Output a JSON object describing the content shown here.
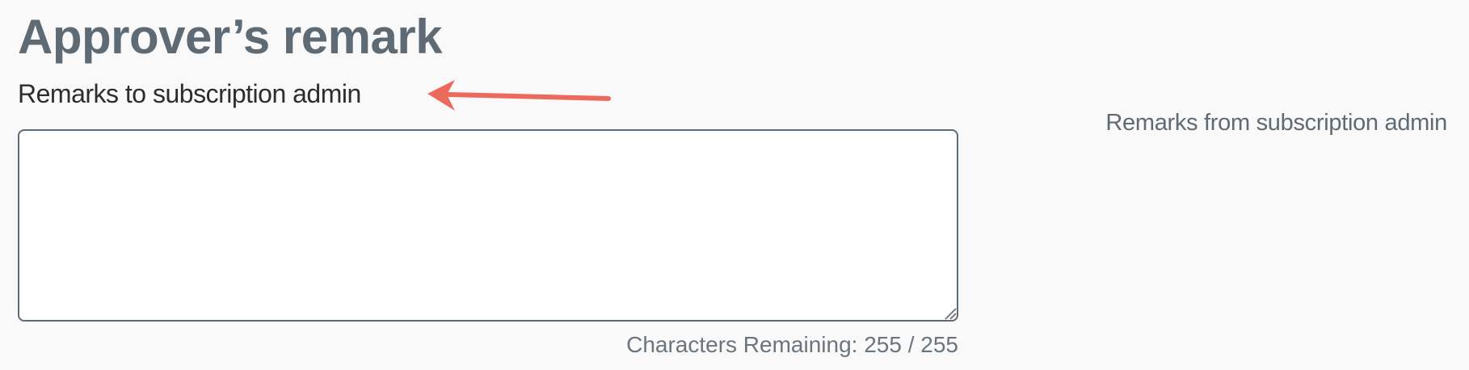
{
  "section": {
    "title": "Approver’s remark"
  },
  "remarks_to_admin": {
    "label": "Remarks to subscription admin",
    "value": "",
    "counter": "Characters Remaining: 255 / 255"
  },
  "remarks_from_admin": {
    "label": "Remarks from subscription admin"
  },
  "annotation": {
    "icon": "arrow-left-icon",
    "color": "#ec6a5c"
  }
}
